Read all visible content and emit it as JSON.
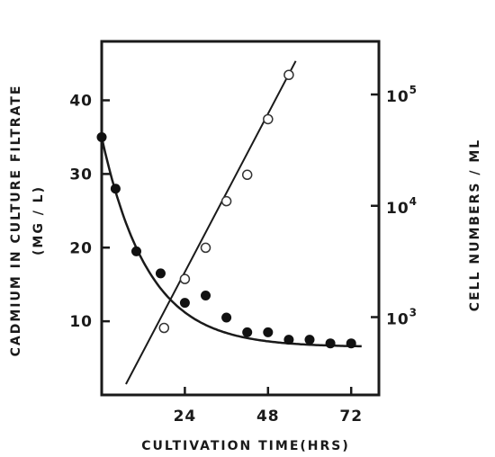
{
  "chart_data": {
    "type": "scatter",
    "xlabel": "CULTIVATION TIME(HRS)",
    "ylabel_left": "CADMIUM IN CULTURE FILTRATE",
    "ylabel_left_unit": "(MG / L)",
    "ylabel_right": "CELL NUMBERS / ML",
    "x_ticks": [
      24,
      48,
      72
    ],
    "x_tick_labels": [
      "24",
      "48",
      "72"
    ],
    "y_left_ticks": [
      10,
      20,
      30,
      40
    ],
    "y_left_tick_labels": [
      "10",
      "20",
      "30",
      "40"
    ],
    "y_right_ticks": [
      1000,
      10000,
      100000
    ],
    "y_right_tick_label_base": "10",
    "y_right_tick_label_exps": [
      "3",
      "4",
      "5"
    ],
    "xlim": [
      0,
      80
    ],
    "ylim_left": [
      0,
      48
    ],
    "ylim_right": [
      200,
      300000
    ],
    "right_axis_scale": "log",
    "grid": false,
    "series": [
      {
        "marker": "filled-circle",
        "axis": "left",
        "fit": "exponential-decay curve",
        "points": [
          {
            "x": 0,
            "y": 35
          },
          {
            "x": 4,
            "y": 28
          },
          {
            "x": 10,
            "y": 19.5
          },
          {
            "x": 17,
            "y": 16.5
          },
          {
            "x": 24,
            "y": 12.5
          },
          {
            "x": 30,
            "y": 13.5
          },
          {
            "x": 36,
            "y": 10.5
          },
          {
            "x": 42,
            "y": 8.5
          },
          {
            "x": 48,
            "y": 8.5
          },
          {
            "x": 54,
            "y": 7.5
          },
          {
            "x": 60,
            "y": 7.5
          },
          {
            "x": 66,
            "y": 7
          },
          {
            "x": 72,
            "y": 7
          }
        ],
        "curve": {
          "asymptote": 6.5,
          "amplitude": 28.5,
          "rate": 0.075
        }
      },
      {
        "marker": "open-circle",
        "axis": "right",
        "fit": "straight line",
        "points": [
          {
            "x": 18,
            "y": 800
          },
          {
            "x": 24,
            "y": 2200
          },
          {
            "x": 30,
            "y": 4200
          },
          {
            "x": 36,
            "y": 11000
          },
          {
            "x": 42,
            "y": 19000
          },
          {
            "x": 48,
            "y": 60000
          },
          {
            "x": 54,
            "y": 150000
          }
        ],
        "line": {
          "x0": 7,
          "y0": 250,
          "x1": 56,
          "y1": 200000
        }
      }
    ]
  }
}
